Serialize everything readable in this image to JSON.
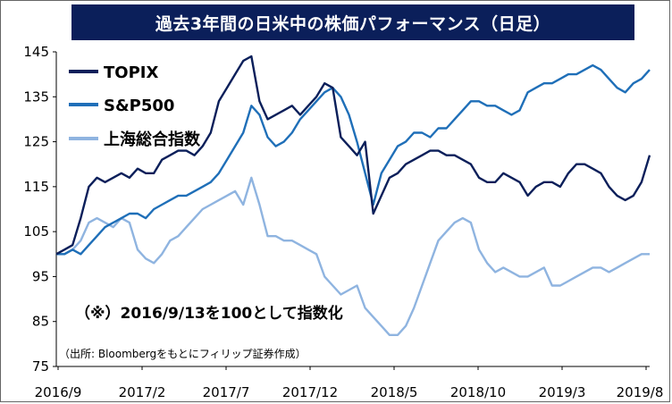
{
  "chart_data": {
    "type": "line",
    "title": "過去3年間の日米中の株価パフォーマンス（日足）",
    "xlabel": "",
    "ylabel": "",
    "ylim": [
      75,
      145
    ],
    "yticks": [
      145,
      135,
      125,
      115,
      105,
      95,
      85,
      75
    ],
    "xticks": [
      "2016/9",
      "2017/2",
      "2017/7",
      "2017/12",
      "2018/5",
      "2018/10",
      "2019/3",
      "2019/8"
    ],
    "note": "（※）2016/9/13を100として指数化",
    "source": "（出所: Bloombergをもとにフィリップ証券作成）",
    "grid": false,
    "legend": "top-left",
    "x": [
      0,
      0.5,
      1,
      1.5,
      2,
      2.5,
      3,
      3.5,
      4,
      4.5,
      5,
      5.5,
      6,
      6.5,
      7,
      7.5,
      8,
      8.5,
      9,
      9.5,
      10,
      10.5,
      11,
      11.5,
      12,
      12.5,
      13,
      13.5,
      14,
      14.5,
      15,
      15.5,
      16,
      16.5,
      17,
      17.5,
      18,
      18.5,
      19,
      19.5,
      20,
      20.5,
      21,
      21.5,
      22,
      22.5,
      23,
      23.5,
      24,
      24.5,
      25,
      25.5,
      26,
      26.5,
      27,
      27.5,
      28,
      28.5,
      29,
      29.5,
      30,
      30.5,
      31,
      31.5,
      32,
      32.5,
      33,
      33.5,
      34,
      34.5,
      35,
      35.5,
      36,
      36.5
    ],
    "series": [
      {
        "name": "TOPIX",
        "color": "#0b1f5a",
        "values": [
          100,
          101,
          102,
          108,
          115,
          117,
          116,
          117,
          118,
          117,
          119,
          118,
          118,
          121,
          122,
          123,
          123,
          122,
          124,
          127,
          134,
          137,
          140,
          143,
          144,
          134,
          130,
          131,
          132,
          133,
          131,
          133,
          135,
          138,
          137,
          126,
          124,
          122,
          125,
          109,
          113,
          117,
          118,
          120,
          121,
          122,
          123,
          123,
          122,
          122,
          121,
          120,
          117,
          116,
          116,
          118,
          117,
          116,
          113,
          115,
          116,
          116,
          115,
          118,
          120,
          120,
          119,
          118,
          115,
          113,
          112,
          113,
          116,
          122
        ]
      },
      {
        "name": "S&P500",
        "color": "#1f6fb8",
        "values": [
          100,
          100,
          101,
          100,
          102,
          104,
          106,
          107,
          108,
          109,
          109,
          108,
          110,
          111,
          112,
          113,
          113,
          114,
          115,
          116,
          118,
          121,
          124,
          127,
          133,
          131,
          126,
          124,
          125,
          127,
          130,
          132,
          134,
          136,
          137,
          135,
          131,
          125,
          118,
          111,
          118,
          121,
          124,
          125,
          127,
          127,
          126,
          128,
          128,
          130,
          132,
          134,
          134,
          133,
          133,
          132,
          131,
          132,
          136,
          137,
          138,
          138,
          139,
          140,
          140,
          141,
          142,
          141,
          139,
          137,
          136,
          138,
          139,
          141
        ]
      },
      {
        "name": "上海総合指数",
        "color": "#8fb4e0",
        "values": [
          100,
          100,
          101,
          103,
          107,
          108,
          107,
          106,
          108,
          107,
          101,
          99,
          98,
          100,
          103,
          104,
          106,
          108,
          110,
          111,
          112,
          113,
          114,
          111,
          117,
          111,
          104,
          104,
          103,
          103,
          102,
          101,
          100,
          95,
          93,
          91,
          92,
          93,
          88,
          86,
          84,
          82,
          82,
          84,
          88,
          93,
          98,
          103,
          105,
          107,
          108,
          107,
          101,
          98,
          96,
          97,
          96,
          95,
          95,
          96,
          97,
          93,
          93,
          94,
          95,
          96,
          97,
          97,
          96,
          97,
          98,
          99,
          100,
          100
        ]
      }
    ]
  }
}
